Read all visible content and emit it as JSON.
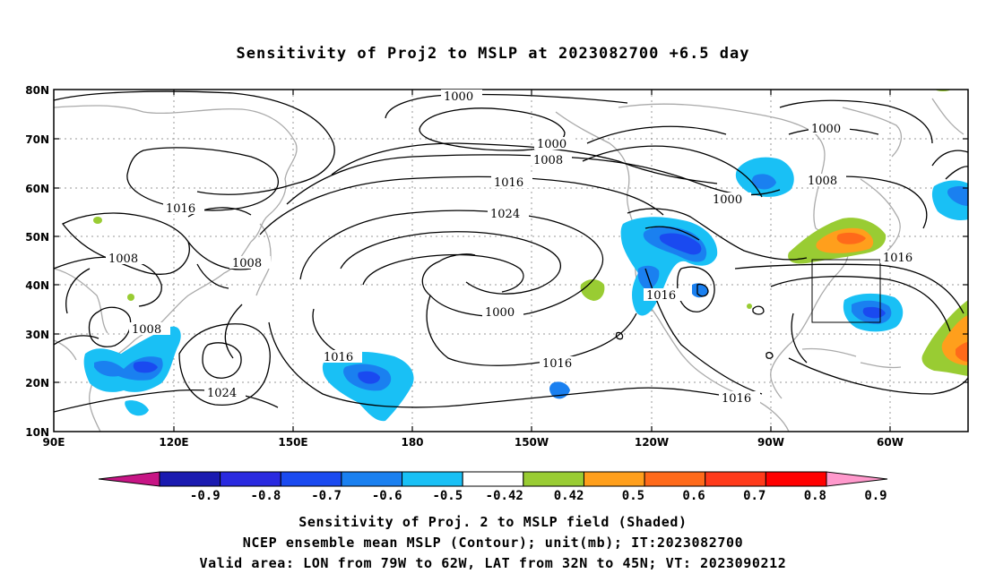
{
  "title": "Sensitivity of Proj2 to MSLP at 2023082700 +6.5 day",
  "lat_labels": [
    "80N",
    "70N",
    "60N",
    "50N",
    "40N",
    "30N",
    "20N",
    "10N"
  ],
  "lon_labels": [
    "90E",
    "120E",
    "150E",
    "180",
    "150W",
    "120W",
    "90W",
    "60W"
  ],
  "contour_labels": [
    "1000",
    "1000",
    "1000",
    "1000",
    "1008",
    "1008",
    "1008",
    "1008",
    "1008",
    "1016",
    "1016",
    "1016",
    "1016",
    "1016",
    "1016",
    "1016",
    "1024",
    "1024",
    "1000"
  ],
  "colorbar": {
    "labels": [
      "-0.9",
      "-0.8",
      "-0.7",
      "-0.6",
      "-0.5",
      "-0.42",
      "0.42",
      "0.5",
      "0.6",
      "0.7",
      "0.8",
      "0.9"
    ],
    "colors": [
      "#c71585",
      "#1a1ab0",
      "#2a2ae0",
      "#1a4af0",
      "#1a80f0",
      "#19c0f5",
      "#ffffff",
      "#99cc33",
      "#ff9f1c",
      "#ff6a1a",
      "#ff3a1a",
      "#ff0000",
      "#ff99cc"
    ]
  },
  "captions": [
    "Sensitivity of Proj. 2 to MSLP field (Shaded)",
    "NCEP ensemble mean MSLP (Contour); unit(mb); IT:2023082700",
    "Valid area: LON from 79W to 62W, LAT from 32N to 45N; VT: 2023090212"
  ]
}
